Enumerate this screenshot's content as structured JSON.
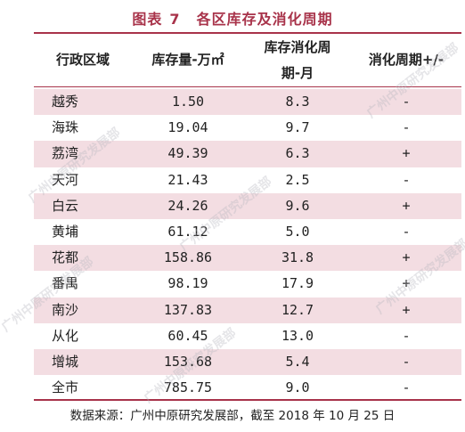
{
  "title": {
    "prefix": "图表",
    "number": "7",
    "text": "各区库存及消化周期"
  },
  "headers": {
    "district": "行政区域",
    "inventory": "库存量-万㎡",
    "cycle_line1": "库存消化周",
    "cycle_line2": "期-月",
    "change": "消化周期+/-"
  },
  "rows": [
    {
      "district": "越秀",
      "inventory": "1.50",
      "cycle": "8.3",
      "change": "-"
    },
    {
      "district": "海珠",
      "inventory": "19.04",
      "cycle": "9.7",
      "change": "-"
    },
    {
      "district": "荔湾",
      "inventory": "49.39",
      "cycle": "6.3",
      "change": "+"
    },
    {
      "district": "天河",
      "inventory": "21.43",
      "cycle": "2.5",
      "change": "-"
    },
    {
      "district": "白云",
      "inventory": "24.26",
      "cycle": "9.6",
      "change": "+"
    },
    {
      "district": "黄埔",
      "inventory": "61.12",
      "cycle": "5.0",
      "change": "-"
    },
    {
      "district": "花都",
      "inventory": "158.86",
      "cycle": "31.8",
      "change": "+"
    },
    {
      "district": "番禺",
      "inventory": "98.19",
      "cycle": "17.9",
      "change": "+"
    },
    {
      "district": "南沙",
      "inventory": "137.83",
      "cycle": "12.7",
      "change": "+"
    },
    {
      "district": "从化",
      "inventory": "60.45",
      "cycle": "13.0",
      "change": "-"
    },
    {
      "district": "增城",
      "inventory": "153.68",
      "cycle": "5.4",
      "change": "-"
    },
    {
      "district": "全市",
      "inventory": "785.75",
      "cycle": "9.0",
      "change": "-"
    }
  ],
  "source": "数据来源：广州中原研究发展部，截至 2018 年 10 月 25 日",
  "watermark": "广州中原研究发展部",
  "colors": {
    "accent": "#a8334a",
    "row_shade": "#f3dde2"
  }
}
